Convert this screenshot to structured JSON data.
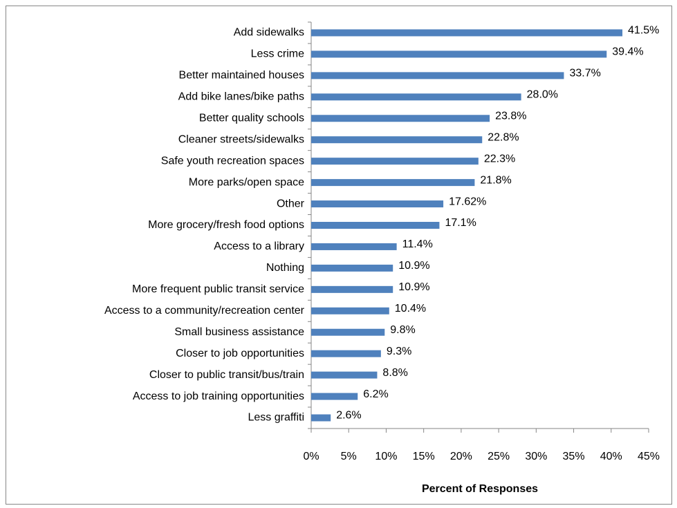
{
  "chart_data": {
    "type": "bar",
    "orientation": "horizontal",
    "x_axis_label": "Percent of Responses",
    "categories": [
      "Add sidewalks",
      "Less crime",
      "Better maintained houses",
      "Add bike lanes/bike paths",
      "Better quality schools",
      "Cleaner streets/sidewalks",
      "Safe youth recreation spaces",
      "More parks/open space",
      "Other",
      "More grocery/fresh food options",
      "Access to a library",
      "Nothing",
      "More frequent public transit service",
      "Access to a community/recreation center",
      "Small business assistance",
      "Closer to job opportunities",
      "Closer to public transit/bus/train",
      "Access to job training opportunities",
      "Less graffiti"
    ],
    "values": [
      41.5,
      39.4,
      33.7,
      28.0,
      23.8,
      22.8,
      22.3,
      21.8,
      17.62,
      17.1,
      11.4,
      10.9,
      10.9,
      10.4,
      9.8,
      9.3,
      8.8,
      6.2,
      2.6
    ],
    "value_labels": [
      "41.5%",
      "39.4%",
      "33.7%",
      "28.0%",
      "23.8%",
      "22.8%",
      "22.3%",
      "21.8%",
      "17.62%",
      "17.1%",
      "11.4%",
      "10.9%",
      "10.9%",
      "10.4%",
      "9.8%",
      "9.3%",
      "8.8%",
      "6.2%",
      "2.6%"
    ],
    "color": "#4f81bd",
    "xlim": [
      0,
      45
    ],
    "xticks": [
      {
        "value": 0,
        "label": "0%"
      },
      {
        "value": 5,
        "label": "5%"
      },
      {
        "value": 10,
        "label": "10%"
      },
      {
        "value": 15,
        "label": "15%"
      },
      {
        "value": 20,
        "label": "20%"
      },
      {
        "value": 25,
        "label": "25%"
      },
      {
        "value": 30,
        "label": "30%"
      },
      {
        "value": 35,
        "label": "35%"
      },
      {
        "value": 40,
        "label": "40%"
      },
      {
        "value": 45,
        "label": "45%"
      }
    ]
  }
}
